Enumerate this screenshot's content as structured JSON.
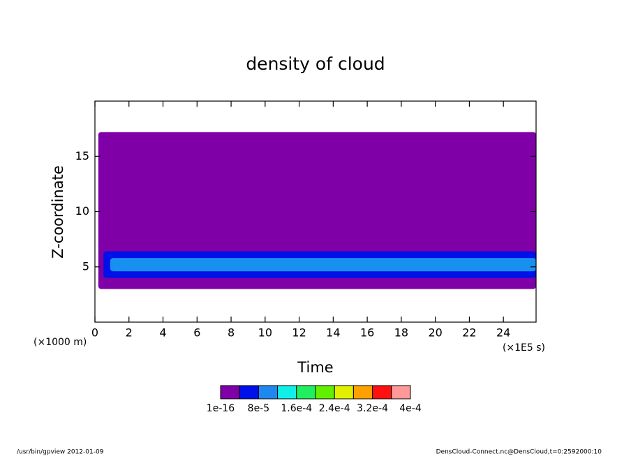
{
  "chart_data": {
    "type": "contour",
    "title": "density of cloud",
    "y_label": "Z-coordinate",
    "x_label": "Time",
    "y_unit": "(×1000 m)",
    "x_unit": "(×1E5 s)",
    "xlim": [
      0,
      25.92
    ],
    "ylim": [
      0,
      20
    ],
    "xticks": [
      0,
      2,
      4,
      6,
      8,
      10,
      12,
      14,
      16,
      18,
      20,
      22,
      24
    ],
    "yticks": [
      5,
      10,
      15
    ],
    "regions": [
      {
        "color": "#8000a8",
        "x": [
          0.2,
          25.92
        ],
        "y": [
          3.0,
          17.2
        ]
      },
      {
        "color": "#0010e8",
        "x": [
          0.5,
          25.92
        ],
        "y": [
          4.0,
          6.4
        ]
      },
      {
        "color": "#1890f0",
        "x": [
          0.9,
          25.92
        ],
        "y": [
          4.6,
          5.8
        ]
      }
    ],
    "colorbar": {
      "colors": [
        "#8000a8",
        "#0010e8",
        "#1e88f0",
        "#10f0e8",
        "#20f060",
        "#60f000",
        "#e0f000",
        "#ffa000",
        "#ff1010",
        "#ff9898"
      ],
      "labels": [
        {
          "value": 1e-16,
          "label": "1e-16"
        },
        {
          "value": 8e-05,
          "label": "8e-5"
        },
        {
          "value": 0.00016,
          "label": "1.6e-4"
        },
        {
          "value": 0.00024,
          "label": "2.4e-4"
        },
        {
          "value": 0.00032,
          "label": "3.2e-4"
        },
        {
          "value": 0.0004,
          "label": "4e-4"
        }
      ]
    },
    "footer_left": "/usr/bin/gpview  2012-01-09",
    "footer_right": "DensCloud-Connect.nc@DensCloud,t=0:2592000:10"
  }
}
